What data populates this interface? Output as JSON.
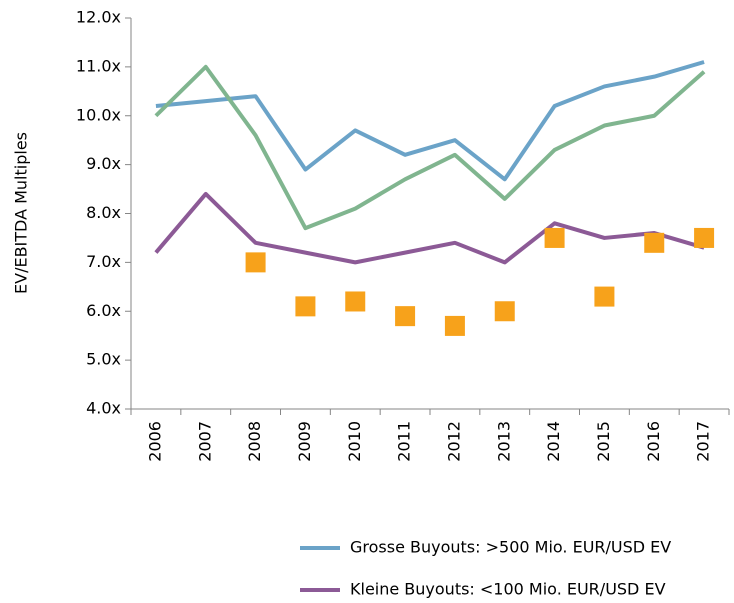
{
  "chart_data": {
    "type": "line",
    "y_label": "EV/EBITDA Multiples",
    "categories": [
      "2006",
      "2007",
      "2008",
      "2009",
      "2010",
      "2011",
      "2012",
      "2013",
      "2014",
      "2015",
      "2016",
      "2017"
    ],
    "series": [
      {
        "name": "Grosse Buyouts: >500 Mio. EUR/USD EV",
        "color": "#6ba3c8",
        "values": [
          10.2,
          10.3,
          10.4,
          8.9,
          9.7,
          9.2,
          9.5,
          8.7,
          10.2,
          10.6,
          10.8,
          11.1
        ]
      },
      {
        "color": "#80b58f",
        "values": [
          10.0,
          11.0,
          9.6,
          7.7,
          8.1,
          8.7,
          9.2,
          8.3,
          9.3,
          9.8,
          10.0,
          10.9
        ]
      },
      {
        "name": "Kleine Buyouts: <100 Mio. EUR/USD EV",
        "color": "#8c5a96",
        "values": [
          7.2,
          8.4,
          7.4,
          7.2,
          7.0,
          7.2,
          7.4,
          7.0,
          7.8,
          7.5,
          7.6,
          7.3
        ]
      },
      {
        "color": "#f7a21b",
        "marker": "square",
        "values": [
          null,
          null,
          7.0,
          6.1,
          6.2,
          5.9,
          5.7,
          6.0,
          7.5,
          6.3,
          7.4,
          7.5
        ]
      }
    ],
    "ylim": [
      4,
      12
    ],
    "yticks": [
      {
        "value": 4,
        "label": "4.0x"
      },
      {
        "value": 5,
        "label": "5.0x"
      },
      {
        "value": 6,
        "label": "6.0x"
      },
      {
        "value": 7,
        "label": "7.0x"
      },
      {
        "value": 8,
        "label": "8.0x"
      },
      {
        "value": 9,
        "label": "9.0x"
      },
      {
        "value": 10,
        "label": "10.0x"
      },
      {
        "value": 11,
        "label": "11.0x"
      },
      {
        "value": 12,
        "label": "12.0x"
      }
    ],
    "grid": false,
    "legend": "bottom"
  }
}
